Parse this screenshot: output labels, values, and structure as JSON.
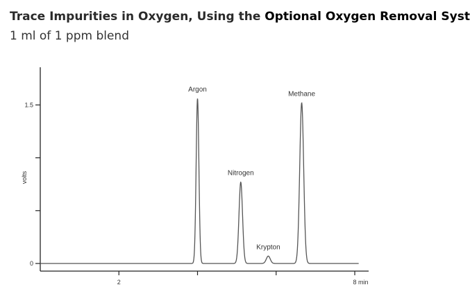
{
  "header": {
    "title_prefix": "Trace Impurities in Oxygen, Using the ",
    "title_link": "Optional Oxygen Removal System",
    "subtitle": "1 ml of 1 ppm blend"
  },
  "chart_data": {
    "type": "line",
    "xlabel": "",
    "x_unit_label": "min",
    "ylabel": "volts",
    "xlim": [
      0,
      8.3
    ],
    "ylim": [
      0,
      1.85
    ],
    "x_ticks": [
      {
        "value": 2,
        "label": "2"
      },
      {
        "value": 4,
        "label": ""
      },
      {
        "value": 6,
        "label": ""
      },
      {
        "value": 8,
        "label": "8"
      }
    ],
    "y_ticks": [
      {
        "value": 0,
        "label": "0"
      },
      {
        "value": 0.5,
        "label": ""
      },
      {
        "value": 1.0,
        "label": ""
      },
      {
        "value": 1.5,
        "label": "1.5"
      }
    ],
    "line_color": "#555555",
    "grid": false,
    "baseline": 0,
    "peaks": [
      {
        "name": "Argon",
        "x": 4.0,
        "height": 1.56,
        "width": 0.035
      },
      {
        "name": "Nitrogen",
        "x": 5.1,
        "height": 0.77,
        "width": 0.045
      },
      {
        "name": "Krypton",
        "x": 5.8,
        "height": 0.07,
        "width": 0.05
      },
      {
        "name": "Methane",
        "x": 6.65,
        "height": 1.52,
        "width": 0.05
      }
    ]
  }
}
